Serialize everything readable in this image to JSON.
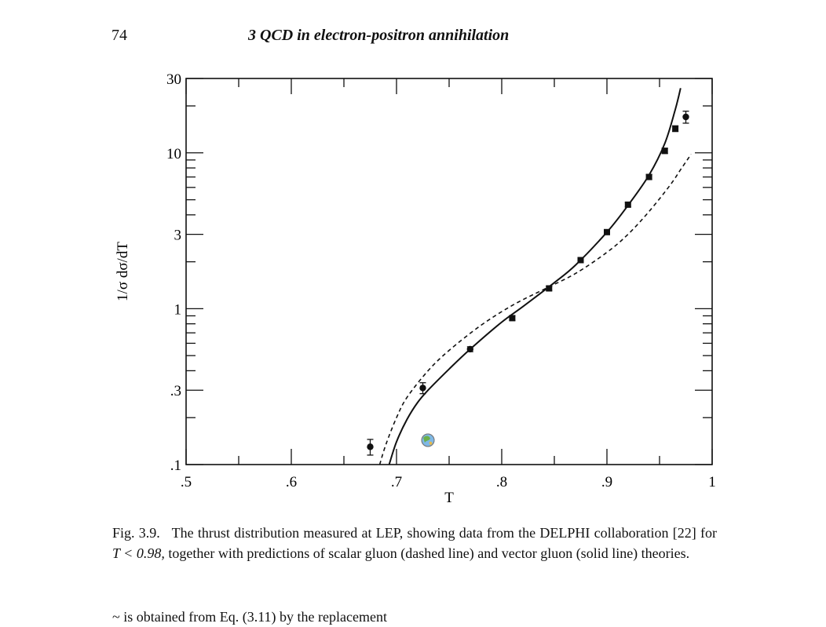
{
  "header": {
    "page_number": "74",
    "running_head": "3 QCD in electron-positron annihilation"
  },
  "chart_data": {
    "type": "scatter",
    "title": "",
    "xlabel": "T",
    "ylabel": "1/σ dσ/dT",
    "xlim": [
      0.5,
      1.0
    ],
    "ylim": [
      0.1,
      30
    ],
    "yscale": "log",
    "x_ticks": [
      {
        "value": 0.5,
        "label": ".5"
      },
      {
        "value": 0.6,
        "label": ".6"
      },
      {
        "value": 0.7,
        "label": ".7"
      },
      {
        "value": 0.8,
        "label": ".8"
      },
      {
        "value": 0.9,
        "label": ".9"
      },
      {
        "value": 1.0,
        "label": "1"
      }
    ],
    "y_ticks": [
      {
        "value": 0.1,
        "label": ".1"
      },
      {
        "value": 0.3,
        "label": ".3"
      },
      {
        "value": 1,
        "label": "1"
      },
      {
        "value": 3,
        "label": "3"
      },
      {
        "value": 10,
        "label": "10"
      },
      {
        "value": 30,
        "label": "30"
      }
    ],
    "grid": false,
    "series": [
      {
        "kind": "points-with-errors",
        "x": [
          0.675,
          0.725,
          0.77,
          0.81,
          0.845,
          0.875,
          0.9,
          0.92,
          0.94,
          0.955,
          0.965,
          0.975
        ],
        "y": [
          0.13,
          0.31,
          0.55,
          0.87,
          1.35,
          2.05,
          3.1,
          4.65,
          7.0,
          10.3,
          14.3,
          17.0
        ],
        "err": [
          0.015,
          0.025,
          0.02,
          0.03,
          0.04,
          0.06,
          0.1,
          0.15,
          0.25,
          0.4,
          0.6,
          1.5
        ]
      },
      {
        "kind": "solid-line",
        "x": [
          0.693,
          0.7,
          0.71,
          0.72,
          0.73,
          0.75,
          0.77,
          0.8,
          0.82,
          0.85,
          0.87,
          0.9,
          0.92,
          0.94,
          0.955,
          0.965,
          0.97
        ],
        "y": [
          0.1,
          0.14,
          0.195,
          0.25,
          0.3,
          0.41,
          0.55,
          0.82,
          1.03,
          1.47,
          1.9,
          3.1,
          4.6,
          7.2,
          11.5,
          19.0,
          26.0
        ]
      },
      {
        "kind": "dashed-line",
        "x": [
          0.684,
          0.69,
          0.7,
          0.71,
          0.73,
          0.75,
          0.78,
          0.81,
          0.84,
          0.87,
          0.9,
          0.92,
          0.94,
          0.96,
          0.97,
          0.98
        ],
        "y": [
          0.1,
          0.135,
          0.2,
          0.27,
          0.4,
          0.54,
          0.78,
          1.05,
          1.33,
          1.68,
          2.3,
          3.0,
          4.2,
          6.2,
          7.8,
          9.8
        ]
      }
    ],
    "marker_icon": "globe-icon"
  },
  "caption": {
    "label": "Fig.  3.9.",
    "text_before_math": "The thrust distribution measured at LEP, showing data from the DELPHI collaboration [22] for",
    "math": "T < 0.98,",
    "text_after_math": "together with predictions of scalar gluon (dashed line) and vector gluon (solid line) theories."
  },
  "body_text": "                     ~ is obtained from Eq. (3.11) by the replacement"
}
